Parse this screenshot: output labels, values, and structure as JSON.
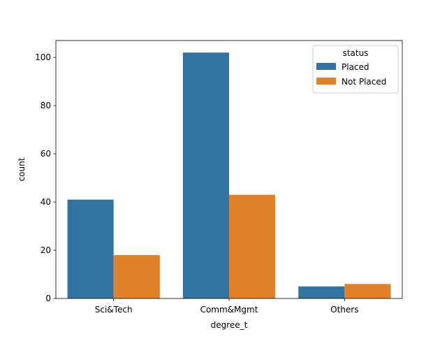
{
  "chart_data": {
    "type": "bar",
    "xlabel": "degree_t",
    "ylabel": "count",
    "categories": [
      "Sci&Tech",
      "Comm&Mgmt",
      "Others"
    ],
    "series": [
      {
        "name": "Placed",
        "values": [
          41,
          102,
          5
        ],
        "color": "#3274a1"
      },
      {
        "name": "Not Placed",
        "values": [
          18,
          43,
          6
        ],
        "color": "#e1812c"
      }
    ],
    "ylim": [
      0,
      107
    ],
    "yticks": [
      0,
      20,
      40,
      60,
      80,
      100
    ],
    "legend": {
      "title": "status",
      "placement": "top-right"
    },
    "grid": false
  }
}
